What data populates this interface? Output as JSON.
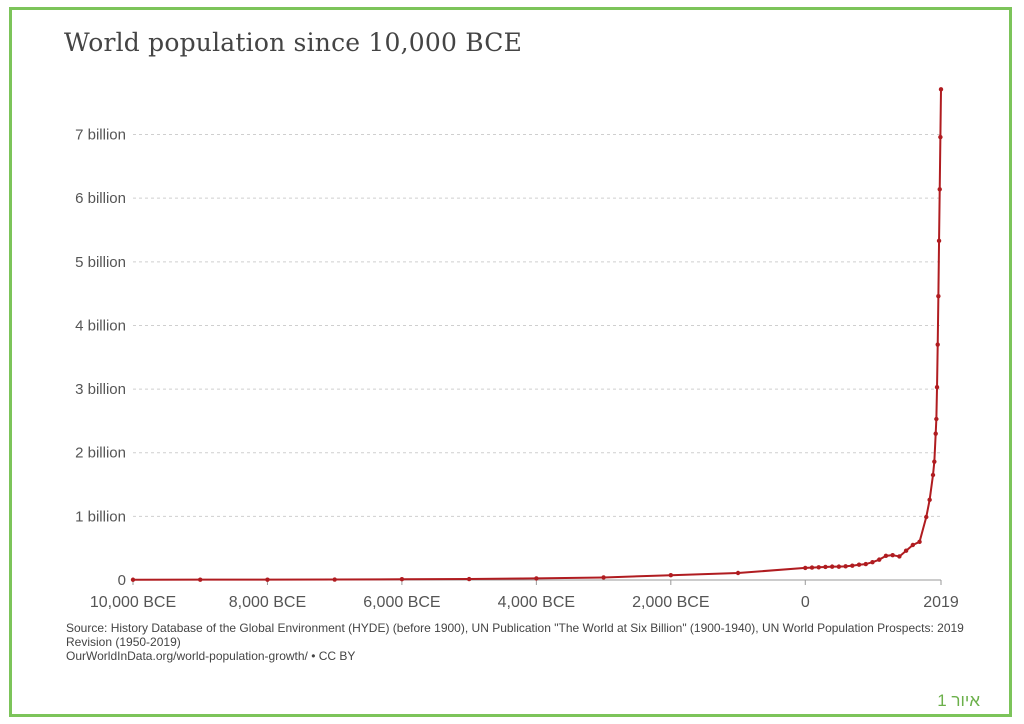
{
  "title": "World population since 10,000 BCE",
  "source": {
    "line1": "Source: History Database of the Global Environment (HYDE) (before 1900), UN Publication \"The World at Six Billion\" (1900-1940), UN World Population Prospects: 2019 Revision (1950-2019)",
    "line2": "OurWorldInData.org/world-population-growth/ • CC BY"
  },
  "figure_label": "איור 1",
  "colors": {
    "line": "#b01c20",
    "grid": "#cfcfcf",
    "border": "#7cc45a",
    "label_green": "#6bb04a"
  },
  "chart_data": {
    "type": "line",
    "title": "World population since 10,000 BCE",
    "xlabel": "",
    "ylabel": "",
    "x_ticks": [
      {
        "value": -10000,
        "label": "10,000 BCE"
      },
      {
        "value": -8000,
        "label": "8,000 BCE"
      },
      {
        "value": -6000,
        "label": "6,000 BCE"
      },
      {
        "value": -4000,
        "label": "4,000 BCE"
      },
      {
        "value": -2000,
        "label": "2,000 BCE"
      },
      {
        "value": 0,
        "label": "0"
      },
      {
        "value": 2019,
        "label": "2019"
      }
    ],
    "y_ticks": [
      {
        "value": 0,
        "label": "0"
      },
      {
        "value": 1000000000,
        "label": "1 billion"
      },
      {
        "value": 2000000000,
        "label": "2 billion"
      },
      {
        "value": 3000000000,
        "label": "3 billion"
      },
      {
        "value": 4000000000,
        "label": "4 billion"
      },
      {
        "value": 5000000000,
        "label": "5 billion"
      },
      {
        "value": 6000000000,
        "label": "6 billion"
      },
      {
        "value": 7000000000,
        "label": "7 billion"
      }
    ],
    "ylim": [
      0,
      7700000000
    ],
    "grid": true,
    "series": [
      {
        "points": [
          [
            -10000,
            4000000
          ],
          [
            -9000,
            5000000
          ],
          [
            -8000,
            5000000
          ],
          [
            -7000,
            7000000
          ],
          [
            -6000,
            12000000
          ],
          [
            -5000,
            15000000
          ],
          [
            -4000,
            25000000
          ],
          [
            -3000,
            40000000
          ],
          [
            -2000,
            75000000
          ],
          [
            -1000,
            110000000
          ],
          [
            0,
            190000000
          ],
          [
            100,
            195000000
          ],
          [
            200,
            200000000
          ],
          [
            300,
            205000000
          ],
          [
            400,
            210000000
          ],
          [
            500,
            210000000
          ],
          [
            600,
            215000000
          ],
          [
            700,
            225000000
          ],
          [
            800,
            240000000
          ],
          [
            900,
            250000000
          ],
          [
            1000,
            280000000
          ],
          [
            1100,
            320000000
          ],
          [
            1200,
            380000000
          ],
          [
            1300,
            390000000
          ],
          [
            1400,
            370000000
          ],
          [
            1500,
            460000000
          ],
          [
            1600,
            550000000
          ],
          [
            1700,
            600000000
          ],
          [
            1800,
            990000000
          ],
          [
            1850,
            1260000000
          ],
          [
            1900,
            1650000000
          ],
          [
            1920,
            1860000000
          ],
          [
            1940,
            2300000000
          ],
          [
            1950,
            2530000000
          ],
          [
            1960,
            3030000000
          ],
          [
            1970,
            3700000000
          ],
          [
            1980,
            4460000000
          ],
          [
            1990,
            5330000000
          ],
          [
            2000,
            6140000000
          ],
          [
            2010,
            6960000000
          ],
          [
            2019,
            7710000000
          ]
        ]
      }
    ]
  }
}
